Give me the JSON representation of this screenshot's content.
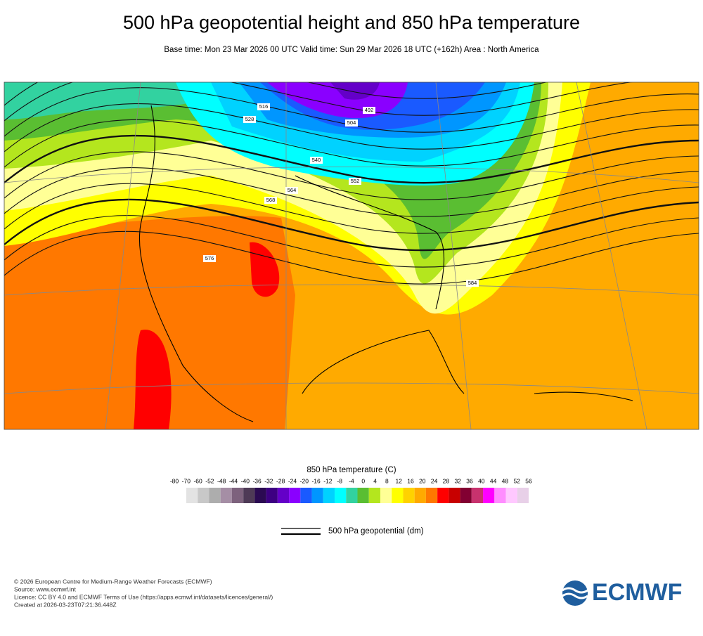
{
  "header": {
    "title": "500 hPa geopotential height and 850 hPa temperature",
    "subtitle": "Base time: Mon 23 Mar 2026 00 UTC Valid time: Sun 29 Mar 2026 18 UTC (+162h) Area : North America"
  },
  "map": {
    "contour_labels": [
      492,
      504,
      516,
      528,
      540,
      552,
      564,
      568,
      576,
      584
    ]
  },
  "colorbar": {
    "title": "850 hPa temperature (C)",
    "ticks": [
      -80,
      -70,
      -60,
      -52,
      -48,
      -44,
      -40,
      -36,
      -32,
      -28,
      -24,
      -20,
      -16,
      -12,
      -8,
      -4,
      0,
      4,
      8,
      12,
      16,
      20,
      24,
      28,
      32,
      36,
      40,
      44,
      48,
      52,
      56
    ],
    "colors": [
      "#e3e3e3",
      "#c8c8c8",
      "#adadad",
      "#a58ea5",
      "#7d627d",
      "#4e3a56",
      "#2b0a52",
      "#3d0082",
      "#6400c8",
      "#8a00ff",
      "#1a5aff",
      "#0096ff",
      "#00d2ff",
      "#00ffff",
      "#32d2a0",
      "#5abe32",
      "#b4e61e",
      "#ffff96",
      "#ffff00",
      "#ffd200",
      "#ffaa00",
      "#ff7800",
      "#ff0000",
      "#c80000",
      "#820032",
      "#c8326e",
      "#ff00ff",
      "#ff8cff",
      "#ffc8ff",
      "#e8d0e8"
    ]
  },
  "line_legend": {
    "label": "500 hPa geopotential (dm)"
  },
  "footer": {
    "lines": [
      "© 2026 European Centre for Medium-Range Weather Forecasts (ECMWF)",
      "Source: www.ecmwf.int",
      "Licence: CC BY 4.0 and ECMWF Terms of Use (https://apps.ecmwf.int/datasets/licences/general/)",
      "Created at 2026-03-23T07:21:36.448Z"
    ],
    "logo": "ECMWF"
  }
}
